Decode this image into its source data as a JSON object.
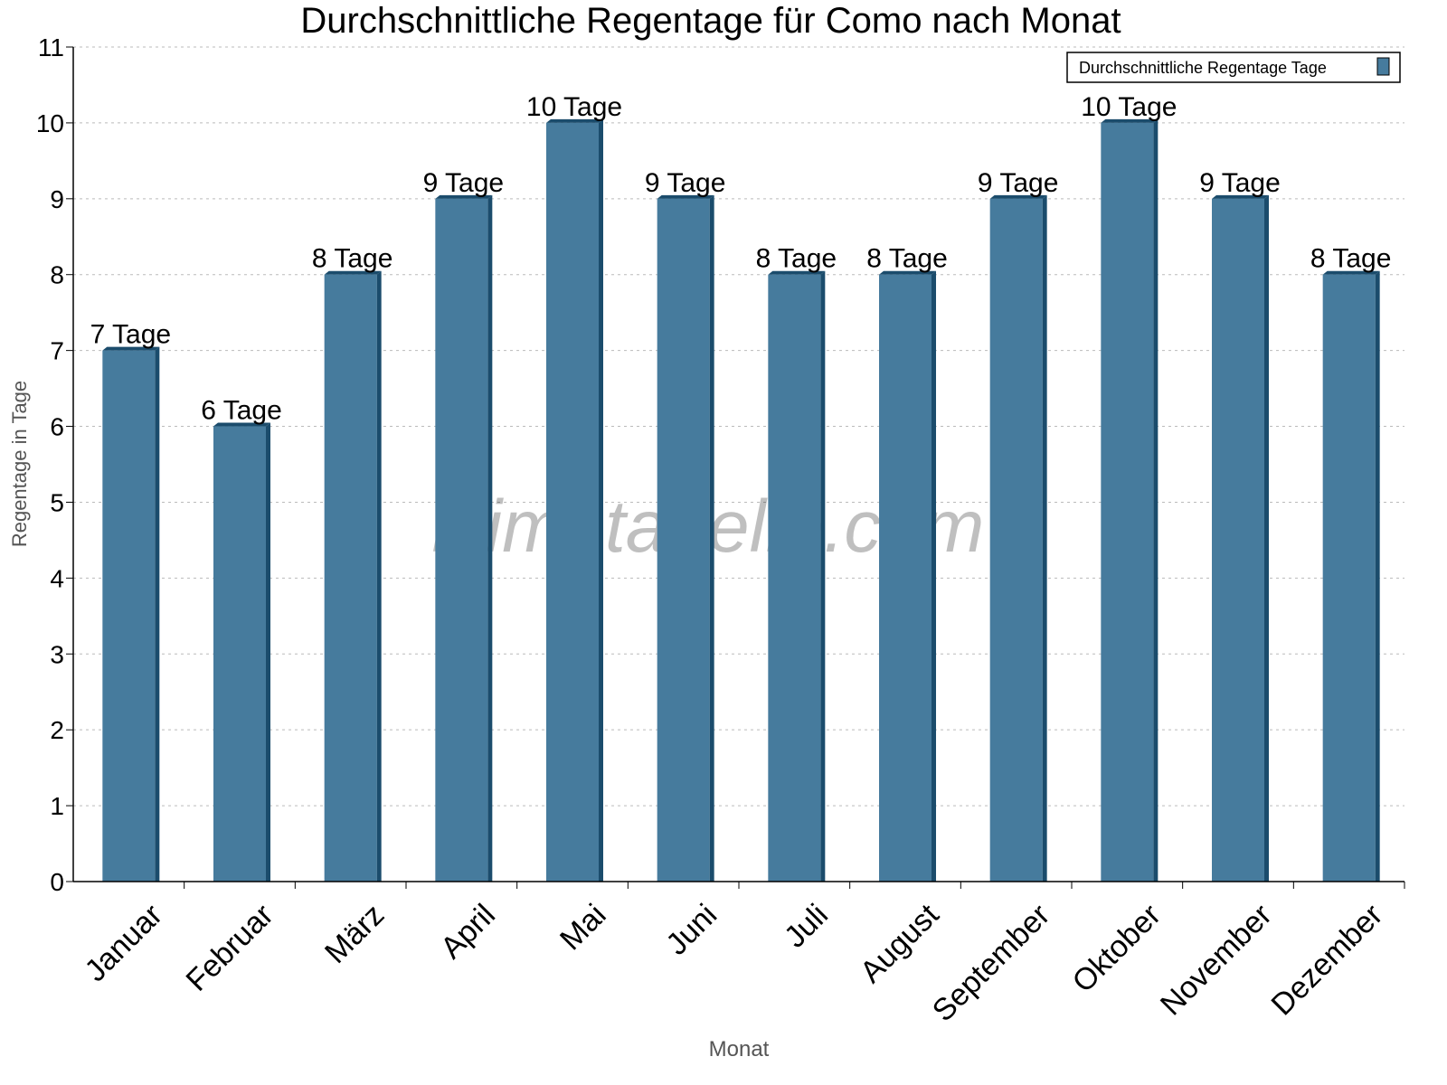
{
  "chart_data": {
    "type": "bar",
    "title": "Durchschnittliche Regentage für Como nach Monat",
    "xlabel": "Monat",
    "ylabel": "Regentage in Tage",
    "categories": [
      "Januar",
      "Februar",
      "März",
      "April",
      "Mai",
      "Juni",
      "Juli",
      "August",
      "September",
      "Oktober",
      "November",
      "Dezember"
    ],
    "series": [
      {
        "name": "Durchschnittliche Regentage Tage",
        "values": [
          7,
          6,
          8,
          9,
          10,
          9,
          8,
          8,
          9,
          10,
          9,
          8
        ]
      }
    ],
    "data_labels": [
      "7 Tage",
      "6 Tage",
      "8 Tage",
      "9 Tage",
      "10 Tage",
      "9 Tage",
      "8 Tage",
      "8 Tage",
      "9 Tage",
      "10 Tage",
      "9 Tage",
      "8 Tage"
    ],
    "ylim": [
      0,
      11
    ],
    "yticks": [
      "0",
      "1",
      "2",
      "3",
      "4",
      "5",
      "6",
      "7",
      "8",
      "9",
      "10",
      "11"
    ],
    "grid": true,
    "legend_position": "top-right",
    "watermark": "klimatabelle.com",
    "colors": {
      "bar": "#467b9d",
      "bar_dark": "#1b4c6c",
      "grid": "#bbbbbb",
      "axis_label": "#555555"
    }
  }
}
